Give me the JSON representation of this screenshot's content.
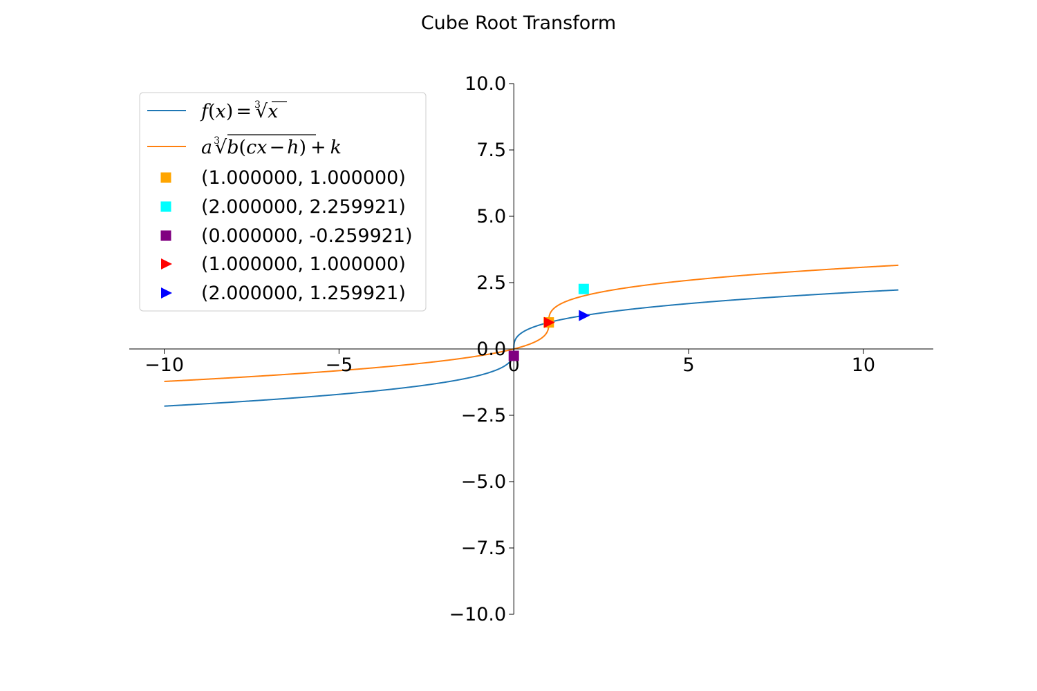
{
  "colors": {
    "base_curve": "#1f77b4",
    "transformed_curve": "#ff7f0e",
    "axis": "#000000",
    "legend_border": "#cccccc"
  },
  "chart_data": {
    "type": "line",
    "title": "Cube Root Transform",
    "xlabel": "",
    "ylabel": "",
    "xlim": [
      -11,
      12
    ],
    "ylim": [
      -10,
      10
    ],
    "axes_style": "spines-through-origin",
    "grid": false,
    "legend_position": "upper-left",
    "xticks": [
      -10,
      -5,
      0,
      5,
      10
    ],
    "xtick_labels": [
      "−10",
      "−5",
      "0",
      "5",
      "10"
    ],
    "yticks": [
      -10,
      -7.5,
      -5,
      -2.5,
      0,
      2.5,
      5,
      7.5,
      10
    ],
    "ytick_labels": [
      "−10.0",
      "−7.5",
      "−5.0",
      "−2.5",
      "0.0",
      "2.5",
      "5.0",
      "7.5",
      "10.0"
    ],
    "series": [
      {
        "name": "f(x) = ∛x",
        "kind": "line",
        "color": "#1f77b4",
        "function": "cbrt(x)",
        "domain": [
          -10,
          11
        ]
      },
      {
        "name": "a∛(b(cx − h)) + k",
        "kind": "line",
        "color": "#ff7f0e",
        "function": "cbrt(x - 1) + 1",
        "domain": [
          -10,
          11
        ]
      }
    ],
    "points": [
      {
        "label": "(1.000000, 1.000000)",
        "x": 1.0,
        "y": 1.0,
        "marker": "square",
        "color": "#ffa500"
      },
      {
        "label": "(2.000000, 2.259921)",
        "x": 2.0,
        "y": 2.259921,
        "marker": "square",
        "color": "#00ffff"
      },
      {
        "label": "(0.000000, -0.259921)",
        "x": 0.0,
        "y": -0.259921,
        "marker": "square",
        "color": "#800080"
      },
      {
        "label": "(1.000000, 1.000000)",
        "x": 1.0,
        "y": 1.0,
        "marker": "triangle-right",
        "color": "#ff0000"
      },
      {
        "label": "(2.000000, 1.259921)",
        "x": 2.0,
        "y": 1.259921,
        "marker": "triangle-right",
        "color": "#0000ff"
      }
    ]
  }
}
